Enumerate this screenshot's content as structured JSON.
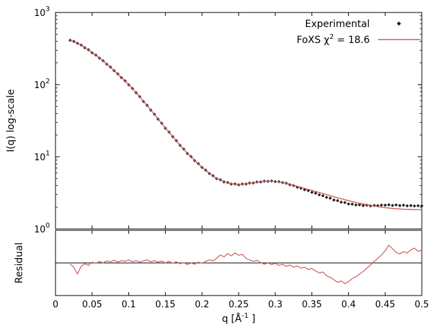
{
  "chart_data": {
    "type": "line+scatter",
    "title": "",
    "ylabel": "I(q) log-scale",
    "residual_ylabel": "Residual",
    "xlabel_parts": {
      "pre": "q [Å",
      "sup": "-1",
      "post": " ]"
    },
    "legend": [
      {
        "label": "Experimental",
        "marker": "diamond"
      },
      {
        "pre": "FoXS χ",
        "sup": "2",
        "post": " = 18.6",
        "marker": "line"
      }
    ],
    "chi2": 18.6,
    "x_range": [
      0,
      0.5
    ],
    "y_log_range": [
      0,
      3
    ],
    "residual_log_range": [
      -0.35,
      0.35
    ],
    "x_ticks": [
      0,
      0.05,
      0.1,
      0.15,
      0.2,
      0.25,
      0.3,
      0.35,
      0.4,
      0.45,
      0.5
    ],
    "x_tick_labels": [
      "0",
      "0.05",
      "0.1",
      "0.15",
      "0.2",
      "0.25",
      "0.3",
      "0.35",
      "0.4",
      "0.45",
      "0.5"
    ],
    "y_tick_exponents": [
      "0",
      "1",
      "2",
      "3"
    ],
    "colors": {
      "axis": "#000000",
      "experimental": "#1c1c1c",
      "fit": "#cd5c5c"
    },
    "x": [
      0.02,
      0.025,
      0.03,
      0.035,
      0.04,
      0.045,
      0.05,
      0.055,
      0.06,
      0.065,
      0.07,
      0.075,
      0.08,
      0.085,
      0.09,
      0.095,
      0.1,
      0.105,
      0.11,
      0.115,
      0.12,
      0.125,
      0.13,
      0.135,
      0.14,
      0.145,
      0.15,
      0.155,
      0.16,
      0.165,
      0.17,
      0.175,
      0.18,
      0.185,
      0.19,
      0.195,
      0.2,
      0.205,
      0.21,
      0.215,
      0.22,
      0.225,
      0.23,
      0.235,
      0.24,
      0.245,
      0.25,
      0.255,
      0.26,
      0.265,
      0.27,
      0.275,
      0.28,
      0.285,
      0.29,
      0.295,
      0.3,
      0.305,
      0.31,
      0.315,
      0.32,
      0.325,
      0.33,
      0.335,
      0.34,
      0.345,
      0.35,
      0.355,
      0.36,
      0.365,
      0.37,
      0.375,
      0.38,
      0.385,
      0.39,
      0.395,
      0.4,
      0.405,
      0.41,
      0.415,
      0.42,
      0.425,
      0.43,
      0.435,
      0.44,
      0.445,
      0.45,
      0.455,
      0.46,
      0.465,
      0.47,
      0.475,
      0.48,
      0.485,
      0.49,
      0.495,
      0.5
    ],
    "series": [
      {
        "name": "Experimental",
        "style": "points",
        "marker": "diamond",
        "color": "#1c1c1c",
        "values": [
          412,
          397,
          374,
          353,
          325,
          304,
          277,
          257,
          233,
          214,
          192,
          175,
          156,
          141,
          125,
          113,
          99.5,
          88.6,
          77.1,
          68.0,
          58.5,
          51.7,
          44.4,
          38.9,
          33.3,
          29.2,
          24.9,
          22.0,
          19.0,
          16.7,
          14.4,
          12.8,
          11.1,
          10.05,
          8.85,
          8.03,
          7.12,
          6.52,
          5.85,
          5.46,
          4.98,
          4.79,
          4.49,
          4.4,
          4.19,
          4.2,
          4.09,
          4.19,
          4.2,
          4.32,
          4.34,
          4.47,
          4.49,
          4.59,
          4.57,
          4.62,
          4.54,
          4.52,
          4.4,
          4.3,
          4.1,
          3.99,
          3.78,
          3.68,
          3.49,
          3.4,
          3.22,
          3.13,
          2.97,
          2.89,
          2.74,
          2.67,
          2.52,
          2.47,
          2.35,
          2.32,
          2.22,
          2.21,
          2.15,
          2.16,
          2.11,
          2.13,
          2.09,
          2.12,
          2.1,
          2.14,
          2.13,
          2.16,
          2.12,
          2.15,
          2.11,
          2.13,
          2.09,
          2.11,
          2.08,
          2.1,
          2.09
        ]
      },
      {
        "name": "FoXS fit",
        "style": "line",
        "color": "#cd5c5c",
        "values": [
          412,
          394,
          376,
          351,
          327,
          302,
          279,
          256,
          234,
          213,
          193,
          174,
          157,
          140,
          126,
          112,
          100,
          88.1,
          77.6,
          67.6,
          58.9,
          51.3,
          44.7,
          38.7,
          33.5,
          29.0,
          25.1,
          21.9,
          19.1,
          16.6,
          14.5,
          12.7,
          11.2,
          10.0,
          8.91,
          7.99,
          7.16,
          6.49,
          5.89,
          5.43,
          5.01,
          4.76,
          4.52,
          4.37,
          4.22,
          4.17,
          4.12,
          4.17,
          4.22,
          4.29,
          4.37,
          4.44,
          4.52,
          4.56,
          4.6,
          4.59,
          4.57,
          4.49,
          4.42,
          4.29,
          4.15,
          4.02,
          3.89,
          3.77,
          3.65,
          3.53,
          3.41,
          3.3,
          3.19,
          3.09,
          2.99,
          2.89,
          2.79,
          2.7,
          2.62,
          2.54,
          2.47,
          2.4,
          2.33,
          2.27,
          2.22,
          2.17,
          2.12,
          2.08,
          2.04,
          2.0,
          1.97,
          1.95,
          1.92,
          1.91,
          1.89,
          1.87,
          1.87,
          1.86,
          1.85,
          1.85,
          1.85
        ]
      }
    ],
    "residual": {
      "reference": 1,
      "values": [
        0.97,
        0.9,
        0.76,
        0.92,
        0.98,
        0.94,
        1.02,
        0.99,
        1.04,
        1.0,
        1.05,
        1.03,
        1.07,
        1.02,
        1.06,
        1.04,
        1.08,
        1.03,
        1.06,
        1.02,
        1.05,
        1.08,
        1.03,
        1.06,
        1.02,
        1.05,
        1.0,
        1.04,
        0.99,
        1.03,
        0.98,
        1.01,
        0.96,
        1.0,
        0.97,
        1.02,
        0.99,
        1.04,
        1.08,
        1.05,
        1.12,
        1.22,
        1.16,
        1.26,
        1.19,
        1.28,
        1.21,
        1.24,
        1.12,
        1.08,
        1.04,
        1.07,
        1.01,
        0.97,
        1.0,
        0.96,
        0.99,
        0.94,
        0.97,
        0.92,
        0.95,
        0.9,
        0.93,
        0.88,
        0.9,
        0.85,
        0.87,
        0.82,
        0.78,
        0.8,
        0.73,
        0.7,
        0.66,
        0.62,
        0.64,
        0.6,
        0.63,
        0.68,
        0.71,
        0.76,
        0.81,
        0.88,
        0.95,
        1.04,
        1.12,
        1.22,
        1.35,
        1.55,
        1.42,
        1.3,
        1.25,
        1.32,
        1.28,
        1.38,
        1.44,
        1.33,
        1.38
      ]
    }
  }
}
